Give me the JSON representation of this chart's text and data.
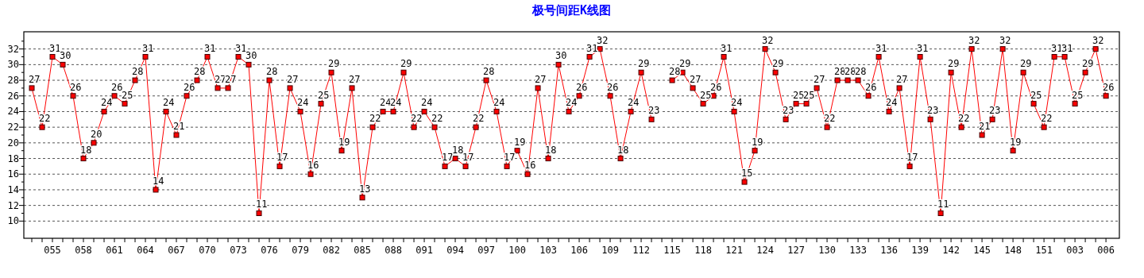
{
  "chart_data": {
    "type": "line",
    "title": "极号间距K线图",
    "categories": [
      null,
      null,
      "055",
      null,
      null,
      "058",
      null,
      null,
      "061",
      null,
      null,
      "064",
      null,
      null,
      "067",
      null,
      null,
      "070",
      null,
      null,
      "073",
      null,
      null,
      "076",
      null,
      null,
      "079",
      null,
      null,
      "082",
      null,
      null,
      "085",
      null,
      null,
      "088",
      null,
      null,
      "091",
      null,
      null,
      "094",
      null,
      null,
      "097",
      null,
      null,
      "100",
      null,
      null,
      "103",
      null,
      null,
      "106",
      null,
      null,
      "109",
      null,
      null,
      "112",
      null,
      null,
      "115",
      null,
      null,
      "118",
      null,
      null,
      "121",
      null,
      null,
      "124",
      null,
      null,
      "127",
      null,
      null,
      "130",
      null,
      null,
      "133",
      null,
      null,
      "136",
      null,
      null,
      "139",
      null,
      null,
      "142",
      null,
      null,
      "145",
      null,
      null,
      "148",
      null,
      null,
      "151",
      null,
      null,
      "003",
      null,
      null,
      "006"
    ],
    "series": [
      {
        "color": "#ff0000",
        "values": [
          27,
          22,
          31,
          30,
          26,
          18,
          20,
          24,
          26,
          25,
          28,
          31,
          14,
          24,
          21,
          26,
          28,
          31,
          27,
          27,
          31,
          30,
          11,
          28,
          17,
          27,
          24,
          16,
          25,
          29,
          19,
          27,
          13,
          22,
          24,
          24,
          29,
          22,
          24,
          22,
          17,
          18,
          17,
          22,
          28,
          24,
          17,
          19,
          16,
          27,
          18,
          30,
          24,
          26,
          31,
          32,
          26,
          18,
          24,
          29,
          23,
          null,
          28,
          29,
          27,
          25,
          26,
          31,
          24,
          15,
          19,
          32,
          29,
          23,
          25,
          25,
          27,
          22,
          28,
          28,
          28,
          26,
          31,
          24,
          27,
          17,
          31,
          23,
          11,
          29,
          22,
          32,
          21,
          23,
          32,
          19,
          29,
          25,
          22,
          31,
          31,
          25,
          29,
          32,
          26
        ]
      }
    ],
    "ylim": [
      7.8,
      34.2
    ],
    "yticks": [
      10,
      {
        "value": 11,
        "label": null
      },
      12,
      {
        "value": 13,
        "label": null
      },
      14,
      {
        "value": 15,
        "label": null
      },
      16,
      {
        "value": 17,
        "label": null
      },
      18,
      {
        "value": 19,
        "label": null
      },
      20,
      {
        "value": 21,
        "label": null
      },
      22,
      {
        "value": 23,
        "label": null
      },
      24,
      {
        "value": 25,
        "label": null
      },
      26,
      {
        "value": 27,
        "label": null
      },
      28,
      {
        "value": 29,
        "label": null
      },
      30,
      {
        "value": 31,
        "label": null
      },
      32,
      {
        "value": 33,
        "label": null
      }
    ],
    "grid": "y",
    "marker": "square",
    "line_style": "solid",
    "data_labels": true
  }
}
